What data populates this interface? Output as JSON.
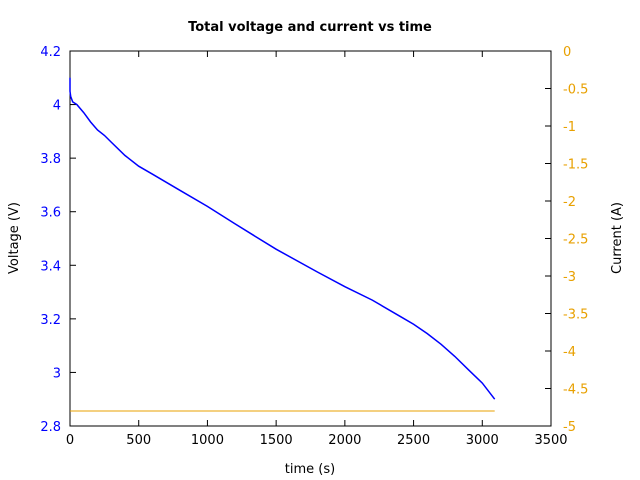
{
  "chart_data": {
    "type": "line",
    "title": "Total voltage and current vs time",
    "xlabel": "time (s)",
    "ylabel": "Voltage (V)",
    "y2label": "Current (A)",
    "xlim": [
      0,
      3500
    ],
    "ylim": [
      2.8,
      4.2
    ],
    "y2lim": [
      -5,
      0
    ],
    "xticks": [
      0,
      500,
      1000,
      1500,
      2000,
      2500,
      3000,
      3500
    ],
    "yticks": [
      2.8,
      3,
      3.2,
      3.4,
      3.6,
      3.8,
      4,
      4.2
    ],
    "y2ticks": [
      0,
      -0.5,
      -1,
      -1.5,
      -2,
      -2.5,
      -3,
      -3.5,
      -4,
      -4.5,
      -5
    ],
    "xtick_labels": [
      "0",
      "500",
      "1000",
      "1500",
      "2000",
      "2500",
      "3000",
      "3500"
    ],
    "ytick_labels": [
      "2.8",
      "3",
      "3.2",
      "3.4",
      "3.6",
      "3.8",
      "4",
      "4.2"
    ],
    "y2tick_labels": [
      "0",
      "-0.5",
      "-1",
      "-1.5",
      "-2",
      "-2.5",
      "-3",
      "-3.5",
      "-4",
      "-4.5",
      "-5"
    ],
    "grid": false,
    "legend": null,
    "series": [
      {
        "name": "Voltage",
        "axis": "left",
        "color": "#0000ff",
        "x": [
          0,
          0,
          5,
          20,
          50,
          100,
          150,
          200,
          250,
          300,
          400,
          500,
          600,
          800,
          1000,
          1200,
          1500,
          1800,
          2000,
          2200,
          2400,
          2500,
          2600,
          2700,
          2800,
          2900,
          3000,
          3090
        ],
        "values": [
          4.1,
          4.05,
          4.03,
          4.01,
          4.0,
          3.97,
          3.935,
          3.905,
          3.885,
          3.86,
          3.81,
          3.77,
          3.74,
          3.68,
          3.62,
          3.555,
          3.46,
          3.375,
          3.32,
          3.27,
          3.21,
          3.18,
          3.145,
          3.105,
          3.06,
          3.01,
          2.96,
          2.9
        ]
      },
      {
        "name": "Current",
        "axis": "right",
        "color": "#e8a000",
        "x": [
          0,
          3090
        ],
        "values": [
          -4.8,
          -4.8
        ]
      }
    ]
  }
}
